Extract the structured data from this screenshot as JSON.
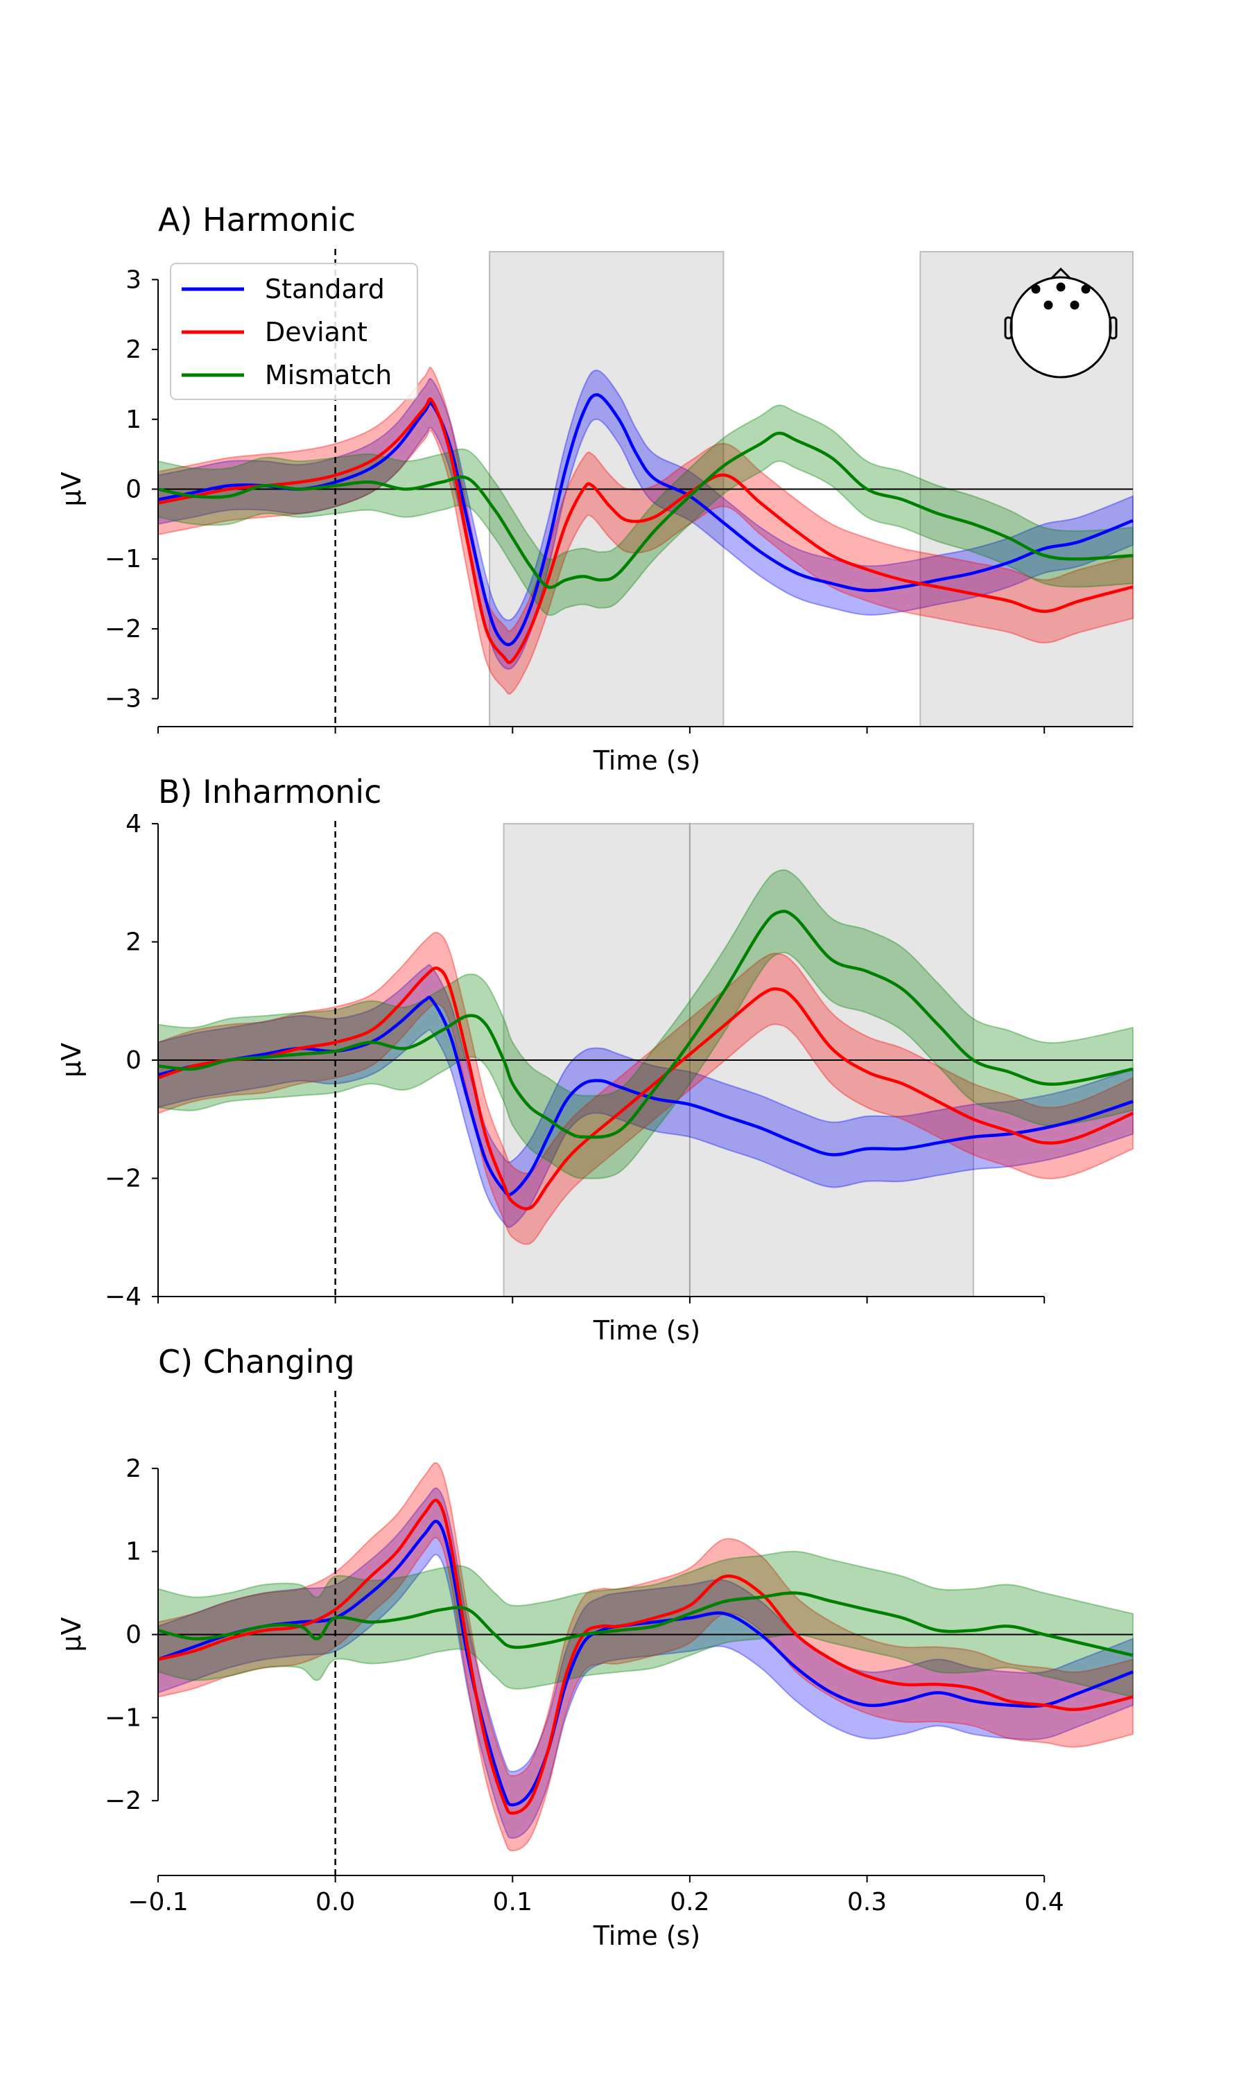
{
  "figure": {
    "legend": [
      {
        "label": "Standard",
        "color": "#0000ff"
      },
      {
        "label": "Deviant",
        "color": "#ff0000"
      },
      {
        "label": "Mismatch",
        "color": "#008000"
      }
    ],
    "head_icon": "head-sensor-montage-icon"
  },
  "chart_data": [
    {
      "type": "line",
      "title": "A) Harmonic",
      "xlabel": "Time (s)",
      "ylabel": "µV",
      "xlim": [
        -0.1,
        0.45
      ],
      "ylim": [
        -3.4,
        3.4
      ],
      "yticks": [
        -3,
        -2,
        -1,
        0,
        1,
        2,
        3
      ],
      "ytick_labels": [
        "−3",
        "−2",
        "−1",
        "0",
        "1",
        "2",
        "3"
      ],
      "xtick_labels": [],
      "shaded_windows": [
        [
          0.087,
          0.219
        ],
        [
          0.33,
          0.45
        ]
      ],
      "legend_position": "top-left",
      "series": [
        {
          "name": "Standard",
          "color": "#0000ff",
          "ci": 0.35,
          "x": [
            -0.1,
            -0.08,
            -0.06,
            -0.04,
            -0.02,
            0,
            0.02,
            0.035,
            0.05,
            0.055,
            0.065,
            0.075,
            0.085,
            0.092,
            0.1,
            0.11,
            0.12,
            0.13,
            0.14,
            0.148,
            0.16,
            0.17,
            0.18,
            0.2,
            0.22,
            0.24,
            0.26,
            0.28,
            0.3,
            0.32,
            0.34,
            0.36,
            0.38,
            0.4,
            0.42,
            0.45
          ],
          "y": [
            -0.15,
            -0.05,
            0.05,
            0.05,
            0.0,
            0.1,
            0.3,
            0.6,
            1.1,
            1.2,
            0.6,
            -0.5,
            -1.6,
            -2.1,
            -2.2,
            -1.7,
            -0.8,
            0.3,
            1.1,
            1.35,
            1.0,
            0.5,
            0.15,
            -0.1,
            -0.5,
            -0.9,
            -1.2,
            -1.35,
            -1.45,
            -1.4,
            -1.3,
            -1.2,
            -1.05,
            -0.85,
            -0.75,
            -0.45
          ]
        },
        {
          "name": "Deviant",
          "color": "#ff0000",
          "ci": 0.45,
          "x": [
            -0.1,
            -0.08,
            -0.06,
            -0.04,
            -0.02,
            0,
            0.02,
            0.035,
            0.05,
            0.055,
            0.065,
            0.075,
            0.085,
            0.095,
            0.1,
            0.11,
            0.12,
            0.13,
            0.14,
            0.145,
            0.155,
            0.165,
            0.18,
            0.2,
            0.22,
            0.24,
            0.26,
            0.28,
            0.3,
            0.32,
            0.34,
            0.36,
            0.38,
            0.4,
            0.42,
            0.45
          ],
          "y": [
            -0.2,
            -0.1,
            0.0,
            0.05,
            0.1,
            0.2,
            0.4,
            0.7,
            1.15,
            1.25,
            0.5,
            -0.8,
            -2.0,
            -2.4,
            -2.45,
            -2.0,
            -1.3,
            -0.5,
            0.0,
            0.05,
            -0.25,
            -0.45,
            -0.4,
            -0.05,
            0.2,
            -0.2,
            -0.6,
            -0.95,
            -1.15,
            -1.3,
            -1.4,
            -1.5,
            -1.6,
            -1.75,
            -1.6,
            -1.4
          ]
        },
        {
          "name": "Mismatch",
          "color": "#008000",
          "ci": 0.4,
          "x": [
            -0.1,
            -0.08,
            -0.06,
            -0.04,
            -0.02,
            0,
            0.02,
            0.04,
            0.06,
            0.075,
            0.09,
            0.1,
            0.11,
            0.12,
            0.13,
            0.14,
            0.15,
            0.16,
            0.18,
            0.2,
            0.22,
            0.24,
            0.25,
            0.26,
            0.28,
            0.3,
            0.32,
            0.34,
            0.36,
            0.38,
            0.4,
            0.42,
            0.45
          ],
          "y": [
            0.0,
            -0.1,
            -0.1,
            0.05,
            0.0,
            0.05,
            0.1,
            0.0,
            0.1,
            0.15,
            -0.3,
            -0.7,
            -1.1,
            -1.4,
            -1.3,
            -1.25,
            -1.3,
            -1.2,
            -0.6,
            -0.1,
            0.35,
            0.65,
            0.8,
            0.7,
            0.45,
            0.0,
            -0.15,
            -0.35,
            -0.5,
            -0.7,
            -0.95,
            -1.0,
            -0.95
          ]
        }
      ]
    },
    {
      "type": "line",
      "title": "B) Inharmonic",
      "xlabel": "Time (s)",
      "ylabel": "µV",
      "xlim": [
        -0.1,
        0.45
      ],
      "ylim": [
        -4,
        4
      ],
      "yticks": [
        -4,
        -2,
        0,
        2,
        4
      ],
      "ytick_labels": [
        "−4",
        "−2",
        "0",
        "2",
        "4"
      ],
      "xtick_labels": [],
      "shaded_windows": [
        [
          0.095,
          0.2
        ],
        [
          0.2,
          0.36
        ]
      ],
      "series": [
        {
          "name": "Standard",
          "color": "#0000ff",
          "ci": 0.55,
          "x": [
            -0.1,
            -0.08,
            -0.06,
            -0.04,
            -0.02,
            0,
            0.02,
            0.035,
            0.05,
            0.055,
            0.065,
            0.075,
            0.085,
            0.095,
            0.1,
            0.11,
            0.12,
            0.13,
            0.14,
            0.15,
            0.16,
            0.18,
            0.2,
            0.22,
            0.24,
            0.26,
            0.28,
            0.3,
            0.32,
            0.34,
            0.36,
            0.38,
            0.4,
            0.42,
            0.45
          ],
          "y": [
            -0.25,
            -0.1,
            0.0,
            0.1,
            0.2,
            0.15,
            0.3,
            0.6,
            1.0,
            1.0,
            0.4,
            -0.7,
            -1.7,
            -2.2,
            -2.25,
            -1.9,
            -1.3,
            -0.7,
            -0.4,
            -0.35,
            -0.45,
            -0.65,
            -0.75,
            -0.95,
            -1.15,
            -1.4,
            -1.6,
            -1.5,
            -1.5,
            -1.4,
            -1.3,
            -1.25,
            -1.15,
            -1.0,
            -0.7
          ]
        },
        {
          "name": "Deviant",
          "color": "#ff0000",
          "ci": 0.6,
          "x": [
            -0.1,
            -0.08,
            -0.06,
            -0.04,
            -0.02,
            0,
            0.02,
            0.035,
            0.05,
            0.058,
            0.065,
            0.075,
            0.085,
            0.095,
            0.1,
            0.11,
            0.12,
            0.13,
            0.14,
            0.16,
            0.18,
            0.2,
            0.22,
            0.24,
            0.25,
            0.26,
            0.28,
            0.3,
            0.32,
            0.34,
            0.36,
            0.38,
            0.4,
            0.42,
            0.45
          ],
          "y": [
            -0.3,
            -0.1,
            0.0,
            0.05,
            0.2,
            0.3,
            0.5,
            0.9,
            1.4,
            1.55,
            1.2,
            0.0,
            -1.3,
            -2.1,
            -2.4,
            -2.5,
            -2.1,
            -1.7,
            -1.4,
            -0.9,
            -0.4,
            0.1,
            0.6,
            1.1,
            1.2,
            1.0,
            0.2,
            -0.2,
            -0.4,
            -0.7,
            -1.0,
            -1.2,
            -1.4,
            -1.3,
            -0.9
          ]
        },
        {
          "name": "Mismatch",
          "color": "#008000",
          "ci": 0.7,
          "x": [
            -0.1,
            -0.08,
            -0.06,
            -0.04,
            -0.02,
            0,
            0.02,
            0.04,
            0.06,
            0.075,
            0.085,
            0.095,
            0.1,
            0.11,
            0.12,
            0.13,
            0.14,
            0.16,
            0.18,
            0.2,
            0.22,
            0.24,
            0.25,
            0.26,
            0.28,
            0.3,
            0.32,
            0.34,
            0.36,
            0.38,
            0.4,
            0.42,
            0.45
          ],
          "y": [
            -0.1,
            -0.15,
            0.0,
            0.05,
            0.1,
            0.15,
            0.3,
            0.2,
            0.5,
            0.75,
            0.6,
            0.0,
            -0.4,
            -0.8,
            -1.0,
            -1.2,
            -1.3,
            -1.2,
            -0.5,
            0.3,
            1.2,
            2.2,
            2.5,
            2.4,
            1.7,
            1.5,
            1.2,
            0.6,
            0.0,
            -0.2,
            -0.4,
            -0.35,
            -0.15
          ]
        }
      ]
    },
    {
      "type": "line",
      "title": "C) Changing",
      "xlabel": "Time (s)",
      "ylabel": "µV",
      "xlim": [
        -0.1,
        0.45
      ],
      "ylim": [
        -2.9,
        2.9
      ],
      "yticks": [
        -2,
        -1,
        0,
        1,
        2
      ],
      "ytick_labels": [
        "−2",
        "−1",
        "0",
        "1",
        "2"
      ],
      "xticks": [
        -0.1,
        0.0,
        0.1,
        0.2,
        0.3,
        0.4
      ],
      "xtick_labels": [
        "−0.1",
        "0.0",
        "0.1",
        "0.2",
        "0.3",
        "0.4"
      ],
      "shaded_windows": [],
      "series": [
        {
          "name": "Standard",
          "color": "#0000ff",
          "ci": 0.4,
          "x": [
            -0.1,
            -0.08,
            -0.06,
            -0.04,
            -0.02,
            0,
            0.02,
            0.035,
            0.05,
            0.058,
            0.065,
            0.075,
            0.085,
            0.095,
            0.1,
            0.11,
            0.12,
            0.13,
            0.14,
            0.15,
            0.16,
            0.18,
            0.2,
            0.22,
            0.24,
            0.26,
            0.28,
            0.3,
            0.32,
            0.34,
            0.36,
            0.38,
            0.4,
            0.42,
            0.45
          ],
          "y": [
            -0.3,
            -0.15,
            0.0,
            0.1,
            0.15,
            0.2,
            0.5,
            0.8,
            1.2,
            1.35,
            0.9,
            -0.3,
            -1.2,
            -1.9,
            -2.05,
            -1.9,
            -1.4,
            -0.6,
            -0.1,
            0.05,
            0.1,
            0.15,
            0.2,
            0.25,
            0.0,
            -0.4,
            -0.7,
            -0.85,
            -0.8,
            -0.7,
            -0.8,
            -0.85,
            -0.85,
            -0.7,
            -0.45
          ]
        },
        {
          "name": "Deviant",
          "color": "#ff0000",
          "ci": 0.45,
          "x": [
            -0.1,
            -0.08,
            -0.06,
            -0.04,
            -0.02,
            0,
            0.02,
            0.035,
            0.05,
            0.058,
            0.065,
            0.075,
            0.085,
            0.095,
            0.1,
            0.11,
            0.12,
            0.13,
            0.14,
            0.15,
            0.16,
            0.18,
            0.2,
            0.22,
            0.24,
            0.26,
            0.28,
            0.3,
            0.32,
            0.34,
            0.36,
            0.38,
            0.4,
            0.42,
            0.45
          ],
          "y": [
            -0.3,
            -0.2,
            -0.05,
            0.05,
            0.1,
            0.3,
            0.7,
            1.0,
            1.45,
            1.6,
            1.1,
            -0.2,
            -1.3,
            -2.0,
            -2.15,
            -2.0,
            -1.4,
            -0.5,
            0.0,
            0.1,
            0.1,
            0.2,
            0.35,
            0.7,
            0.5,
            0.0,
            -0.3,
            -0.5,
            -0.6,
            -0.6,
            -0.65,
            -0.8,
            -0.85,
            -0.9,
            -0.75
          ]
        },
        {
          "name": "Mismatch",
          "color": "#008000",
          "ci": 0.5,
          "x": [
            -0.1,
            -0.08,
            -0.06,
            -0.04,
            -0.02,
            -0.01,
            0,
            0.02,
            0.04,
            0.06,
            0.075,
            0.09,
            0.1,
            0.12,
            0.14,
            0.16,
            0.18,
            0.2,
            0.22,
            0.24,
            0.26,
            0.28,
            0.3,
            0.32,
            0.34,
            0.36,
            0.38,
            0.4,
            0.42,
            0.45
          ],
          "y": [
            0.05,
            -0.05,
            0.0,
            0.1,
            0.1,
            -0.05,
            0.2,
            0.15,
            0.2,
            0.3,
            0.3,
            0.0,
            -0.15,
            -0.1,
            0.0,
            0.05,
            0.1,
            0.25,
            0.4,
            0.45,
            0.5,
            0.4,
            0.3,
            0.2,
            0.05,
            0.05,
            0.1,
            0.0,
            -0.1,
            -0.25
          ]
        }
      ]
    }
  ]
}
